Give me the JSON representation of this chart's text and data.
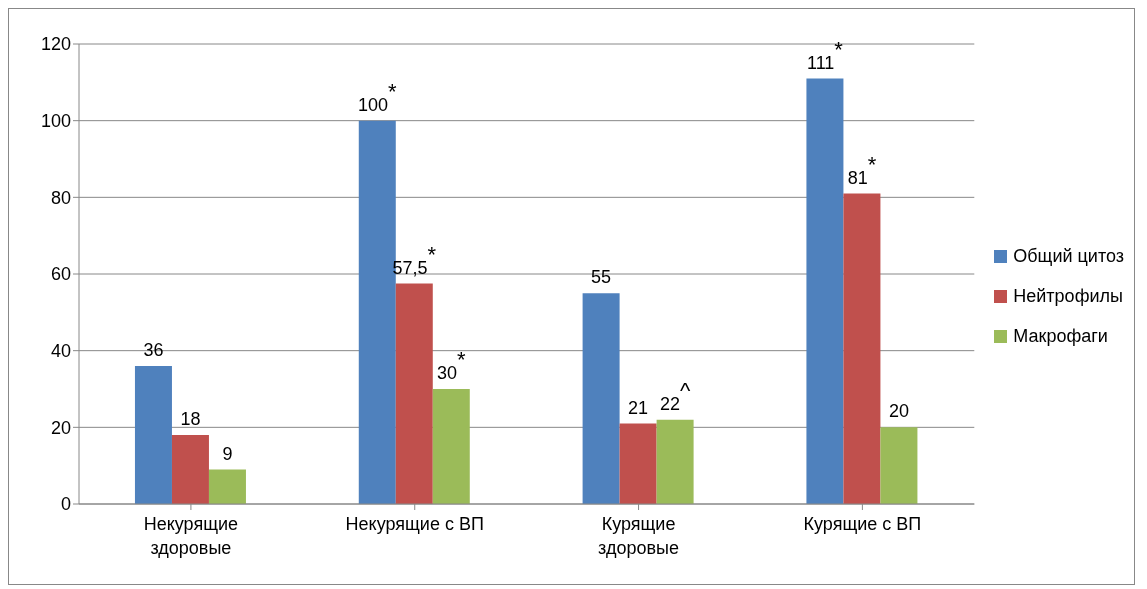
{
  "chart_data": {
    "type": "bar",
    "categories": [
      "Некурящие здоровые",
      "Некурящие с ВП",
      "Курящие здоровые",
      "Курящие с ВП"
    ],
    "series": [
      {
        "name": "Общий цитоз",
        "color": "#4f81bd",
        "values": [
          36,
          100,
          55,
          111
        ],
        "value_labels": [
          "36",
          "100$^{*}$",
          "55",
          "111$^{*}$"
        ]
      },
      {
        "name": "Нейтрофилы",
        "color": "#c0504d",
        "values": [
          18,
          57.5,
          21,
          81
        ],
        "value_labels": [
          "18",
          "57,5$^{*}$",
          "21",
          "81$^{*}$"
        ]
      },
      {
        "name": "Макрофаги",
        "color": "#9bbb59",
        "values": [
          9,
          30,
          22,
          20
        ],
        "value_labels": [
          "9",
          "30$^{*}$",
          "22$^{^}$",
          "20"
        ]
      }
    ],
    "ylim": [
      0,
      120
    ],
    "yticks": [
      0,
      20,
      40,
      60,
      80,
      100,
      120
    ],
    "grid": "y",
    "legend": "right"
  }
}
